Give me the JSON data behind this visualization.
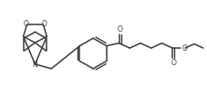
{
  "bg_color": "#ffffff",
  "line_color": "#3a3a3a",
  "line_width": 1.1,
  "figsize": [
    2.27,
    1.17
  ],
  "dpi": 100,
  "xlim": [
    0,
    227
  ],
  "ylim": [
    0,
    117
  ]
}
